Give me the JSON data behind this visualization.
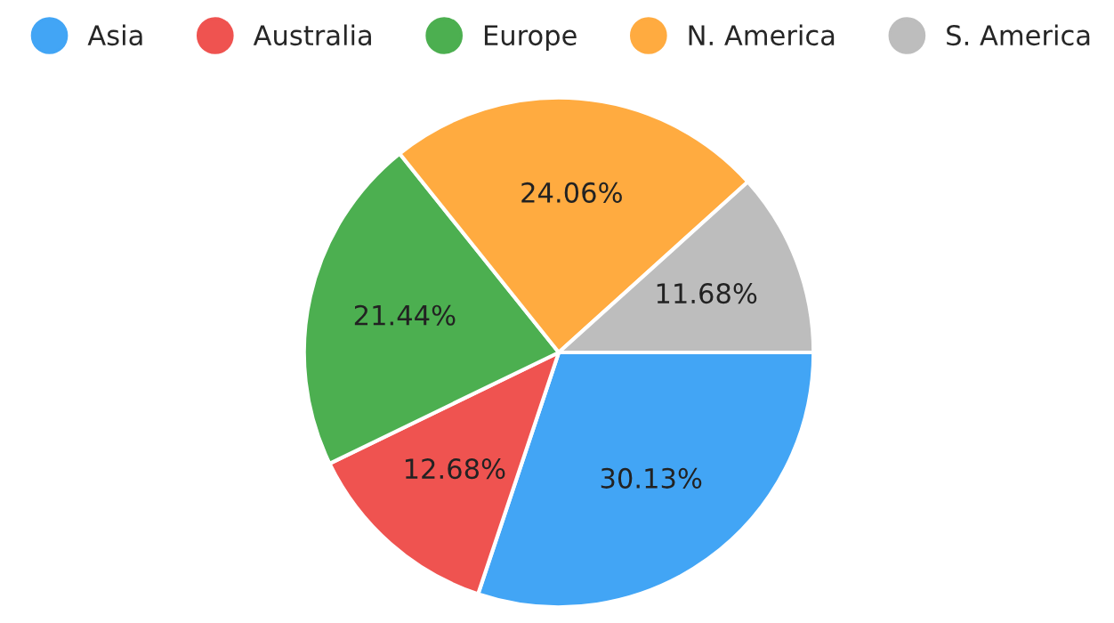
{
  "chart_data": {
    "type": "pie",
    "categories": [
      "Asia",
      "Australia",
      "Europe",
      "N. America",
      "S. America"
    ],
    "values": [
      30.13,
      12.68,
      21.44,
      24.06,
      11.68
    ],
    "colors": [
      "#42a5f5",
      "#ef5350",
      "#4caf50",
      "#ffab40",
      "#bdbdbd"
    ],
    "value_labels": [
      "30.13%",
      "12.68%",
      "21.44%",
      "24.06%",
      "11.68%"
    ],
    "legend": "top"
  }
}
